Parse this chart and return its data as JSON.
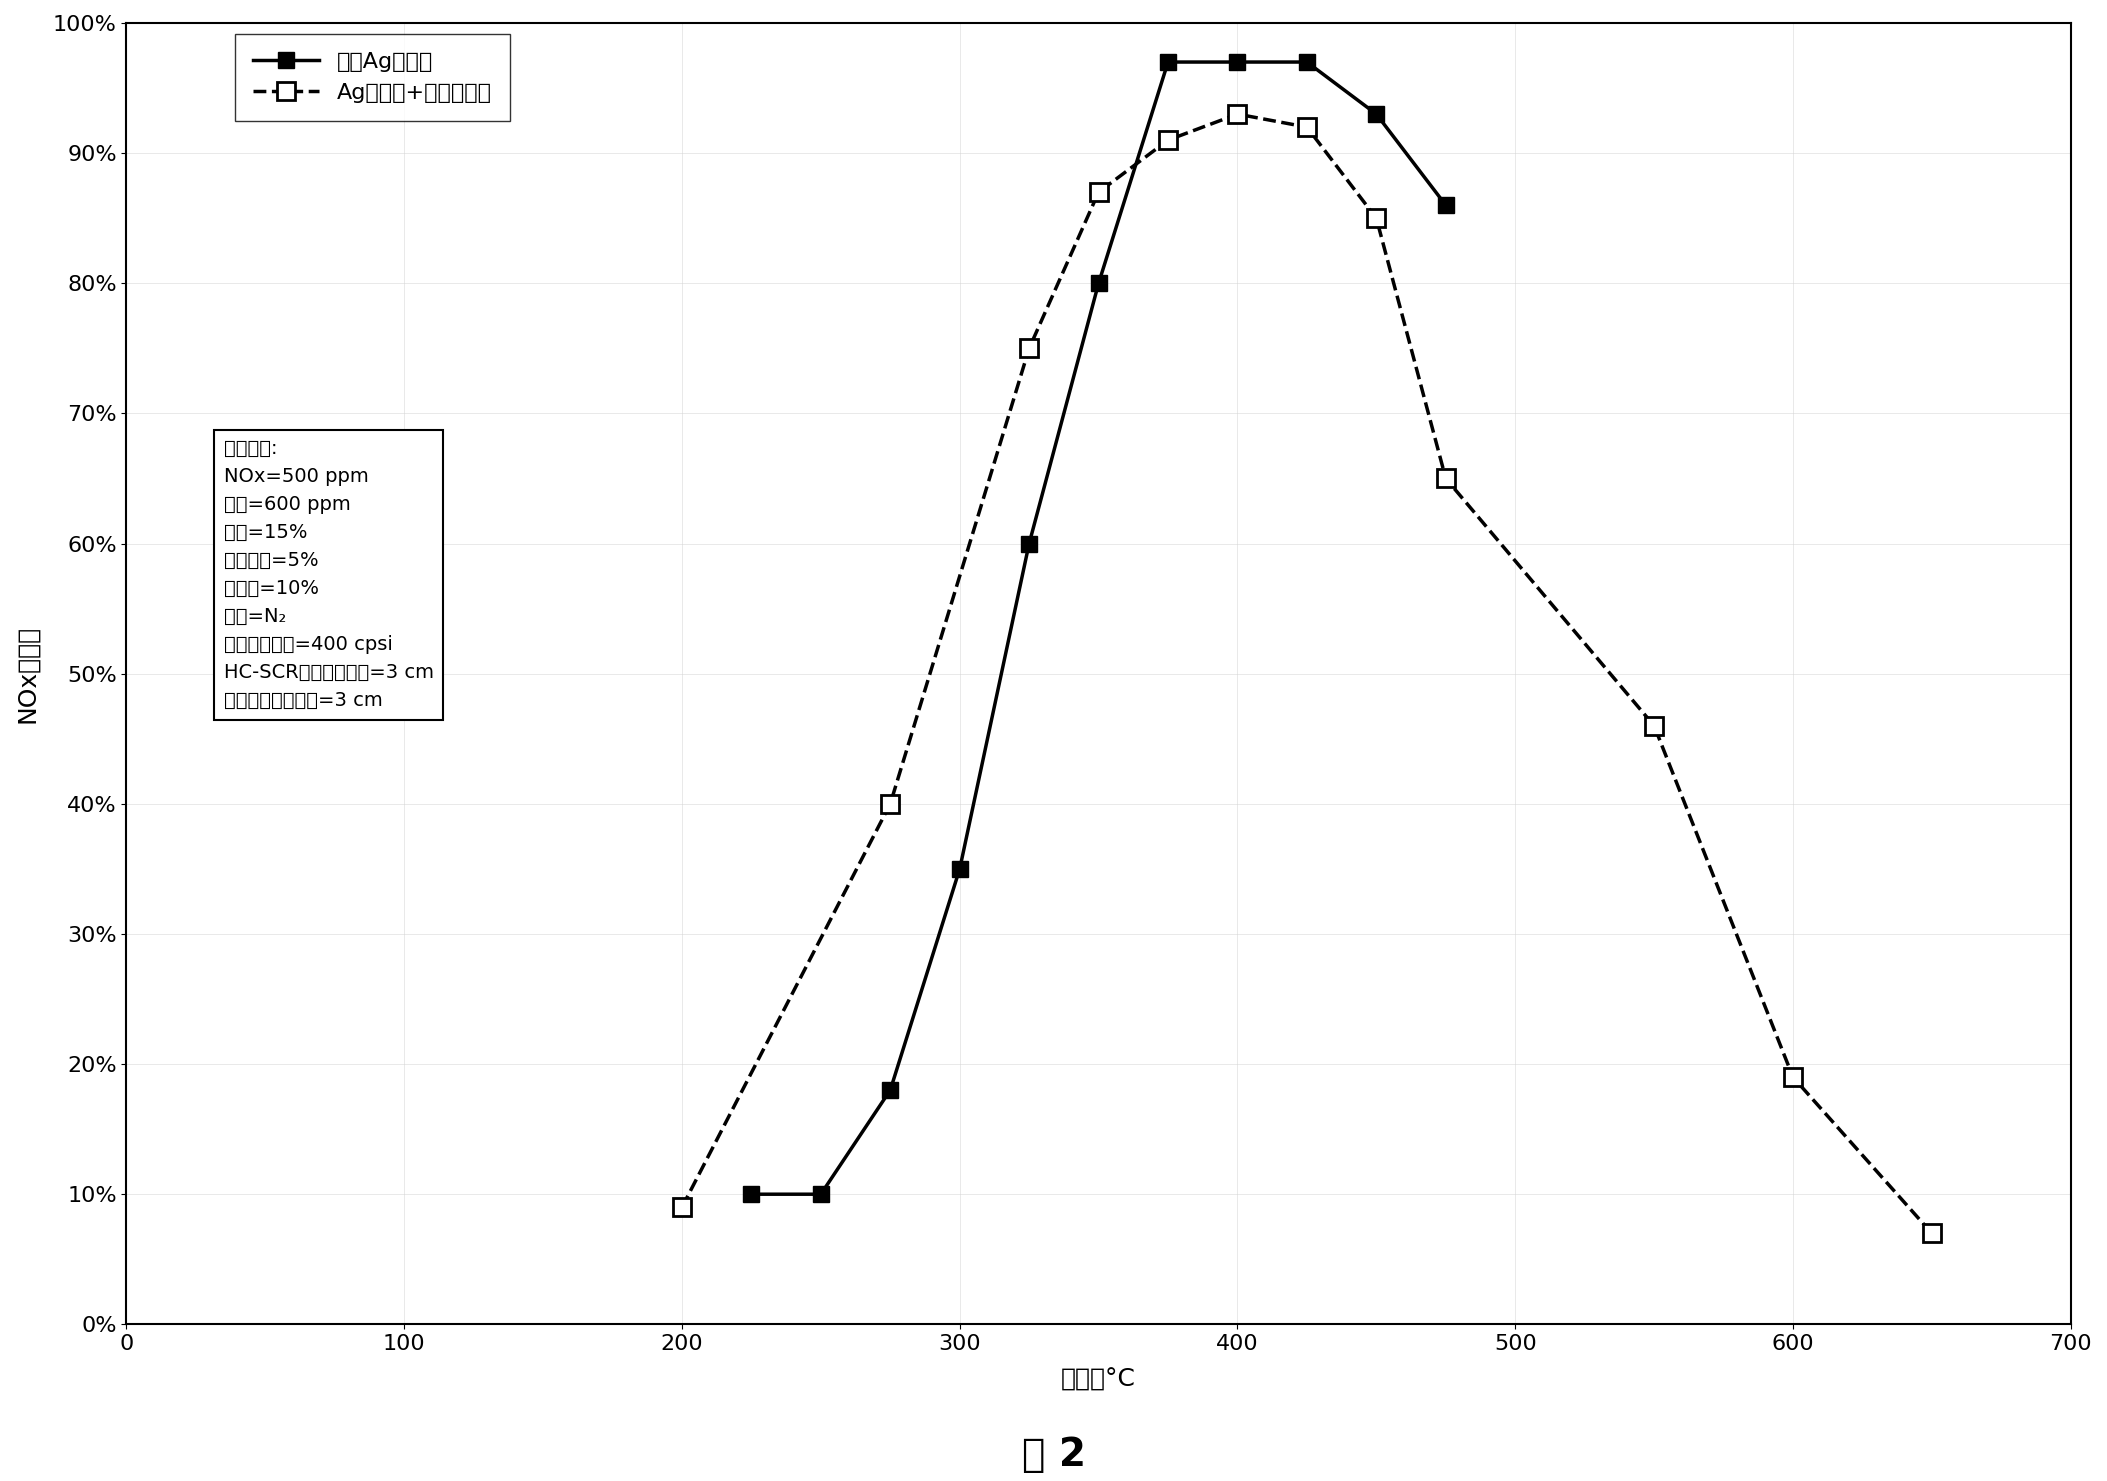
{
  "title": "图 2",
  "xlabel": "温度，°C",
  "ylabel": "NOx转化率",
  "xlim": [
    0,
    700
  ],
  "ylim": [
    0,
    1.0
  ],
  "xticks": [
    0,
    100,
    200,
    300,
    400,
    500,
    600,
    700
  ],
  "yticks": [
    0.0,
    0.1,
    0.2,
    0.3,
    0.4,
    0.5,
    0.6,
    0.7,
    0.8,
    0.9,
    1.0
  ],
  "ytick_labels": [
    "0%",
    "10%",
    "20%",
    "30%",
    "40%",
    "50%",
    "60%",
    "70%",
    "80%",
    "90%",
    "100%"
  ],
  "series1_label": "只有Ag催化剂",
  "series2_label": "Ag催化剂+氧化催化剂",
  "series1_x": [
    225,
    250,
    275,
    300,
    325,
    350,
    375,
    400,
    425,
    450,
    475
  ],
  "series1_y": [
    0.1,
    0.1,
    0.18,
    0.35,
    0.6,
    0.8,
    0.97,
    0.97,
    0.97,
    0.93,
    0.86
  ],
  "series2_x": [
    200,
    275,
    325,
    350,
    375,
    400,
    425,
    450,
    475,
    550,
    600,
    650
  ],
  "series2_y": [
    0.09,
    0.4,
    0.75,
    0.87,
    0.91,
    0.93,
    0.92,
    0.85,
    0.65,
    0.46,
    0.19,
    0.07
  ],
  "annotation_box": [
    "试验条件:",
    "NOx=500 ppm",
    "乙醇=600 ppm",
    "氧气=15%",
    "二氧化碳=5%",
    "水蒸汽=10%",
    "其余=N₂",
    "样品池孔密度=400 cpsi",
    "HC-SCR催化剂床长度=3 cm",
    "氧化催化剂床长度=3 cm"
  ],
  "background_color": "#ffffff",
  "line1_color": "#000000",
  "line2_color": "#000000",
  "figure_width": 21.07,
  "figure_height": 14.81,
  "dpi": 100
}
